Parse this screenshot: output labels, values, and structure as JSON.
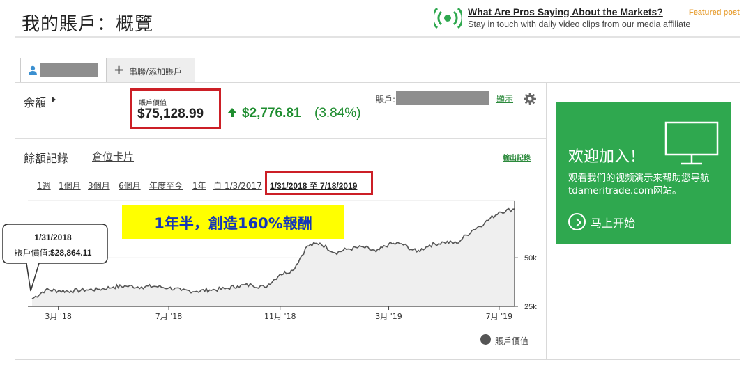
{
  "header": {
    "title": "我的賬戶：概覽",
    "promo": {
      "headline": "What Are Pros Saying About the Markets?",
      "featured": "Featured post",
      "subtitle": "Stay in touch with daily video clips from our media affiliate",
      "icon": "broadcast-icon",
      "accent": "#2fa84f"
    }
  },
  "tabs": [
    {
      "label": "",
      "icon": "user-icon",
      "active": true
    },
    {
      "label": "串聯/添加賬戶",
      "icon": "plus-icon",
      "active": false
    }
  ],
  "balance": {
    "label": "余額",
    "value_label": "賬戶價值",
    "value": "$75,128.99",
    "change_amount": "$2,776.81",
    "change_pct": "(3.84%)",
    "change_color": "#1e8d2f",
    "account_label": "賬戶:",
    "show_link": "顯示"
  },
  "history": {
    "title": "餘額記錄",
    "cards_link": "倉位卡片",
    "export_link": "輸出記錄",
    "ranges": [
      "1週",
      "1個月",
      "3個月",
      "6個月",
      "年度至今",
      "1年",
      "自 1/3/2017"
    ],
    "active_range": "1/31/2018 至 7/18/2019"
  },
  "annotation": {
    "banner": "1年半，創造160%報酬",
    "callout_date": "1/31/2018",
    "callout_label": "賬戶價值:",
    "callout_value": "$28,864.11"
  },
  "chart_data": {
    "type": "area",
    "x": [
      "2018-01-31",
      "2018-02-15",
      "2018-03-01",
      "2018-03-15",
      "2018-04-01",
      "2018-04-15",
      "2018-05-01",
      "2018-05-15",
      "2018-06-01",
      "2018-06-15",
      "2018-07-01",
      "2018-07-15",
      "2018-08-01",
      "2018-08-15",
      "2018-09-01",
      "2018-09-15",
      "2018-10-01",
      "2018-10-15",
      "2018-11-01",
      "2018-11-15",
      "2018-12-01",
      "2018-12-15",
      "2019-01-01",
      "2019-01-15",
      "2019-02-01",
      "2019-02-15",
      "2019-03-01",
      "2019-03-15",
      "2019-04-01",
      "2019-04-15",
      "2019-05-01",
      "2019-05-15",
      "2019-06-01",
      "2019-06-15",
      "2019-07-01",
      "2019-07-18"
    ],
    "series": [
      {
        "name": "賬戶價值",
        "values": [
          28864,
          33500,
          33000,
          32800,
          33500,
          33800,
          35000,
          35400,
          35000,
          35300,
          34500,
          33200,
          32800,
          33400,
          34000,
          35500,
          36000,
          34800,
          41500,
          43500,
          56000,
          57500,
          52500,
          54500,
          55500,
          53000,
          57000,
          57200,
          53000,
          56500,
          58000,
          57500,
          64000,
          68000,
          73500,
          75129
        ]
      }
    ],
    "xticks": [
      "3月 '18",
      "7月 '18",
      "11月 '18",
      "3月 '19",
      "7月 '19"
    ],
    "yticks": [
      "25k",
      "50k"
    ],
    "ylim": [
      25000,
      78000
    ],
    "grid": true,
    "legend_position": "bottom-right",
    "line_color": "#555555",
    "fill_color": "#efefef"
  },
  "ad": {
    "title": "欢迎加入！",
    "body": "观看我们的视频演示来帮助您导航tdameritrade.com网站。",
    "cta": "马上开始",
    "icon": "monitor-icon",
    "background": "#2fa84f"
  }
}
